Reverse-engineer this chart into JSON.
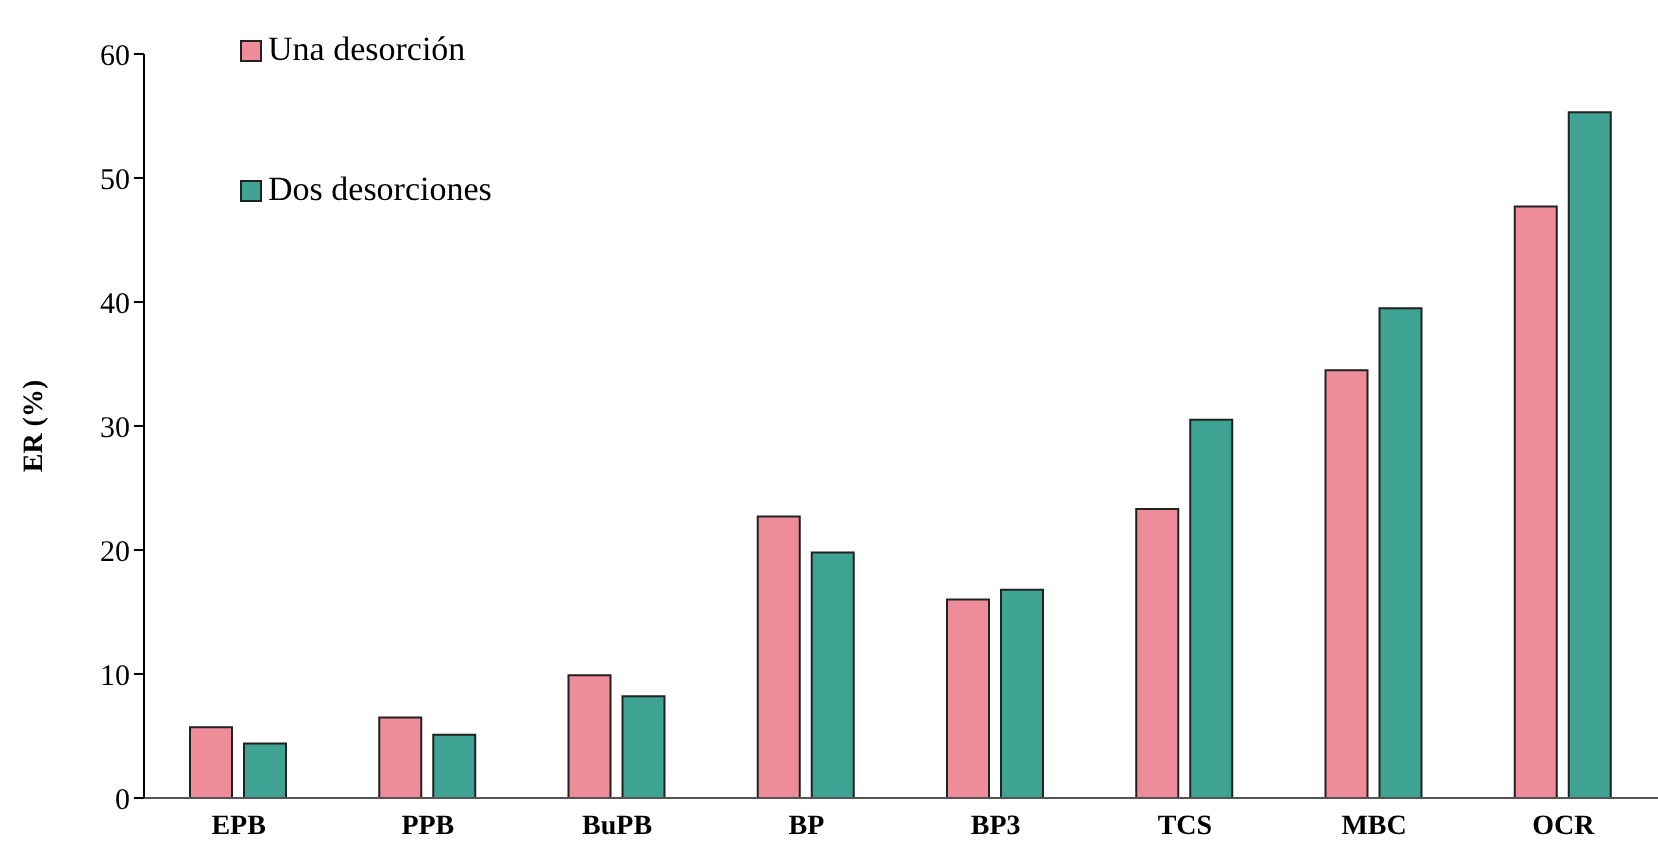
{
  "chart_data": {
    "type": "bar",
    "ylabel": "ER (%)",
    "categories": [
      "EPB",
      "PPB",
      "BuPB",
      "BP",
      "BP3",
      "TCS",
      "MBC",
      "OCR"
    ],
    "series": [
      {
        "name": "Una desorción",
        "color": "#ee8c9a",
        "values": [
          5.7,
          6.5,
          9.9,
          22.7,
          16.0,
          23.3,
          34.5,
          47.7
        ]
      },
      {
        "name": "Dos desorciones",
        "color": "#3fa394",
        "values": [
          4.4,
          5.1,
          8.2,
          19.8,
          16.8,
          30.5,
          39.5,
          55.3
        ]
      }
    ],
    "ylim": [
      0,
      60
    ],
    "yticks": [
      0,
      10,
      20,
      30,
      40,
      50,
      60
    ],
    "grid": false,
    "legend": "top left"
  }
}
